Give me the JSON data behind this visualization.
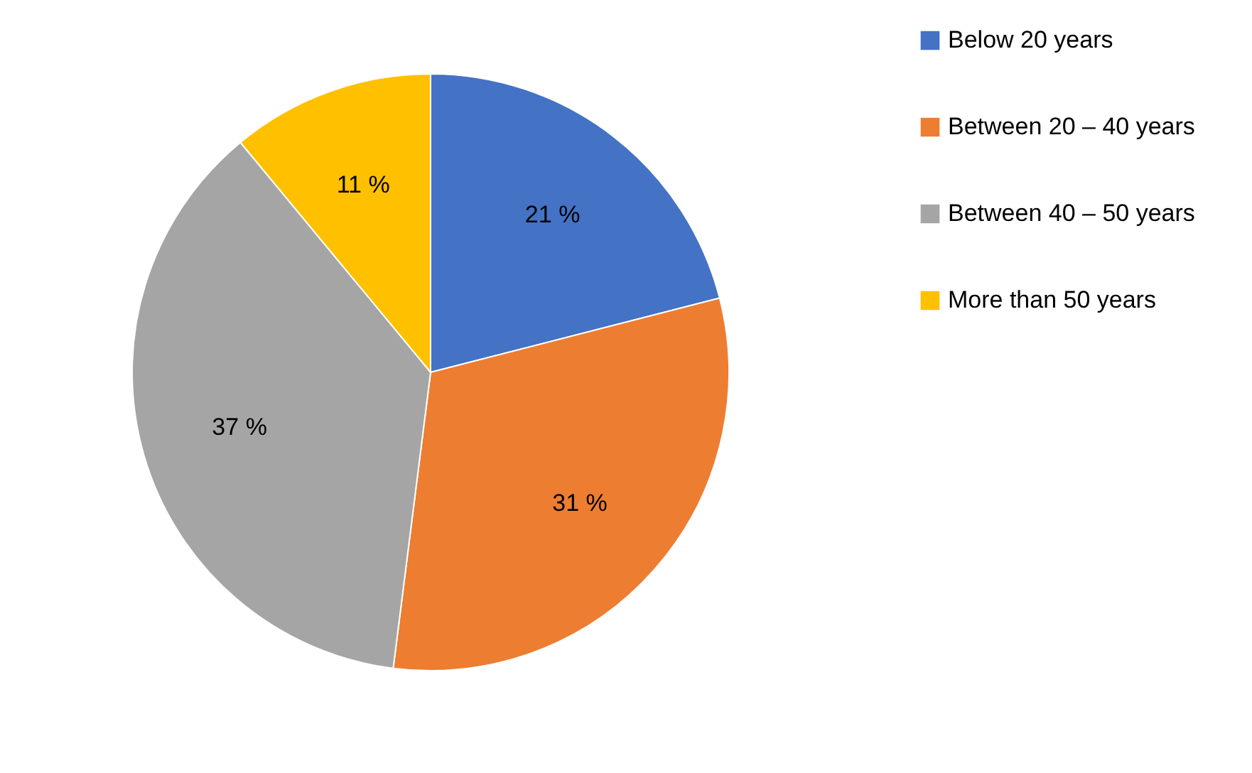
{
  "chart_data": {
    "type": "pie",
    "categories": [
      "Below 20 years",
      "Between 20 – 40 years",
      "Between 40 – 50 years",
      "More than 50 years"
    ],
    "values": [
      21,
      31,
      37,
      11
    ],
    "colors": [
      "#4472c4",
      "#ed7d31",
      "#a5a5a5",
      "#ffc000"
    ],
    "value_labels": [
      "21 %",
      "31 %",
      "37 %",
      "11 %"
    ],
    "legend": "right"
  }
}
